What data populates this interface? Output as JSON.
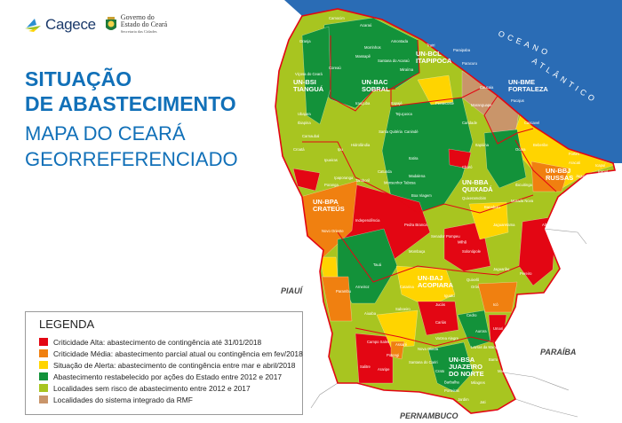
{
  "header": {
    "cagece_logo": "Cagece",
    "gov_logo": {
      "line1": "Governo do",
      "line2": "Estado do Ceará",
      "line3": "Secretaria das Cidades"
    },
    "title_line1": "SITUAÇÃO",
    "title_line2": "DE ABASTECIMENTO",
    "subtitle_line1": "MAPA DO CEARÁ",
    "subtitle_line2": "GEORREFERENCIADO"
  },
  "legend": {
    "title": "LEGENDA",
    "items": [
      {
        "label": "Criticidade Alta: abastecimento de contingência até 31/01/2018",
        "color": "#e30613"
      },
      {
        "label": "Criticidade Média: abastecimento parcial atual ou contingência em fev/2018",
        "color": "#f08010"
      },
      {
        "label": "Situação de Alerta: abastecimento de contingência entre mar e abril/2018",
        "color": "#ffd400"
      },
      {
        "label": "Abastecimento restabelecido por ações do Estado entre 2012 e 2017",
        "color": "#13923a"
      },
      {
        "label": "Localidades sem risco de abastecimento entre 2012 e 2017",
        "color": "#a8c520"
      },
      {
        "label": "Localidades do sistema integrado da RMF",
        "color": "#c9956a"
      }
    ]
  },
  "map": {
    "ocean_color": "#2a6cb5",
    "ocean_label_1": "OCEANO",
    "ocean_label_2": "ATLÂNTICO",
    "neighbors": [
      "PIAUÍ",
      "PARAÍBA",
      "PERNAMBUCO"
    ],
    "units": [
      {
        "l1": "UN-BSI",
        "l2": "TIANGUÁ"
      },
      {
        "l1": "UN-BAC",
        "l2": "SOBRAL"
      },
      {
        "l1": "UN-BCL",
        "l2": "ITAPIPOCA"
      },
      {
        "l1": "UN-BME",
        "l2": "FORTALEZA"
      },
      {
        "l1": "UN-BBJ",
        "l2": "RUSSAS"
      },
      {
        "l1": "UN-BBA",
        "l2": "QUIXADÁ"
      },
      {
        "l1": "UN-BPA",
        "l2": "CRATEÚS"
      },
      {
        "l1": "UN-BAJ",
        "l2": "ACOPIARA"
      },
      {
        "l1": "UN-BSA",
        "l2": "JUAZEIRO",
        "l3": "DO NORTE"
      }
    ],
    "cities": [
      "Granja",
      "Camocim",
      "Acaraú",
      "Amontada",
      "Trairi",
      "Paraipaba",
      "Paracuru",
      "Caucaia",
      "Maranguape",
      "Pacajus",
      "Cascavel",
      "Beberibe",
      "Fortim",
      "Aracati",
      "Icapuí",
      "Jaguaruana",
      "Ocara",
      "Caridade",
      "Canindé",
      "Itatira",
      "Madalena",
      "Choró",
      "Quixeramobim",
      "Banabuiú",
      "Morada Nova",
      "Limoeiro do Norte",
      "Jaguaretama",
      "Alto Santo",
      "Jaguaribe",
      "Pereiro",
      "Ibicuitinga",
      "Boa Viagem",
      "Independência",
      "Pedra Branca",
      "Mombaça",
      "Tauá",
      "Arneiroz",
      "Catarina",
      "Saboeiro",
      "Jucás",
      "Cariús",
      "Iguatu",
      "Orós",
      "Icó",
      "Cedro",
      "Aurora",
      "Barro",
      "Milagres",
      "Mauriti",
      "Crato",
      "Barbalha",
      "Jardim",
      "Jati",
      "Porteiras",
      "Araripe",
      "Campo Sales",
      "Salitre",
      "Potengi",
      "Assaré",
      "Aiuaba",
      "Parambu",
      "Novo Oriente",
      "Tamboril",
      "Catunda",
      "Monsenhor Tabosa",
      "Ipaporanga",
      "Ipueiras",
      "Poranga",
      "Hidrolândia",
      "Santa Quitéria",
      "Ipu",
      "Irauçuba",
      "Itapajé",
      "Tejuçuoca",
      "Pentecoste",
      "Miraíma",
      "Massapê",
      "Santana do Acaraú",
      "Morrinhos",
      "Ubajara",
      "Ibiapina",
      "Carnaubal",
      "Croatá",
      "Coreaú",
      "Viçosa do Ceará",
      "Itapiúna",
      "Senador Pompeu",
      "Milhã",
      "Solonópole",
      "Quixelô",
      "Umari",
      "Lavras da Mangabeira",
      "Varzea Alegre",
      "Santana do Cariri",
      "Nova Olinda",
      "Icapuí"
    ]
  }
}
